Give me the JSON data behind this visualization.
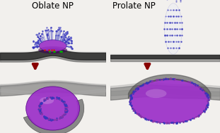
{
  "title_oblate": "Oblate NP",
  "title_prolate": "Prolate NP",
  "title_fontsize": 8.5,
  "bg_color": "#f2f0ed",
  "membrane_dark": "#2a2a2a",
  "membrane_mid": "#555555",
  "membrane_gray": "#7a7a7a",
  "membrane_light": "#aaaaaa",
  "nanoparticle_color": "#9b2fc8",
  "nanoparticle_edge": "#5a0a8a",
  "clathrin_color": "#3535bb",
  "clathrin_light": "#6060cc",
  "arrow_color": "#880000",
  "fig_width": 3.11,
  "fig_height": 1.89
}
